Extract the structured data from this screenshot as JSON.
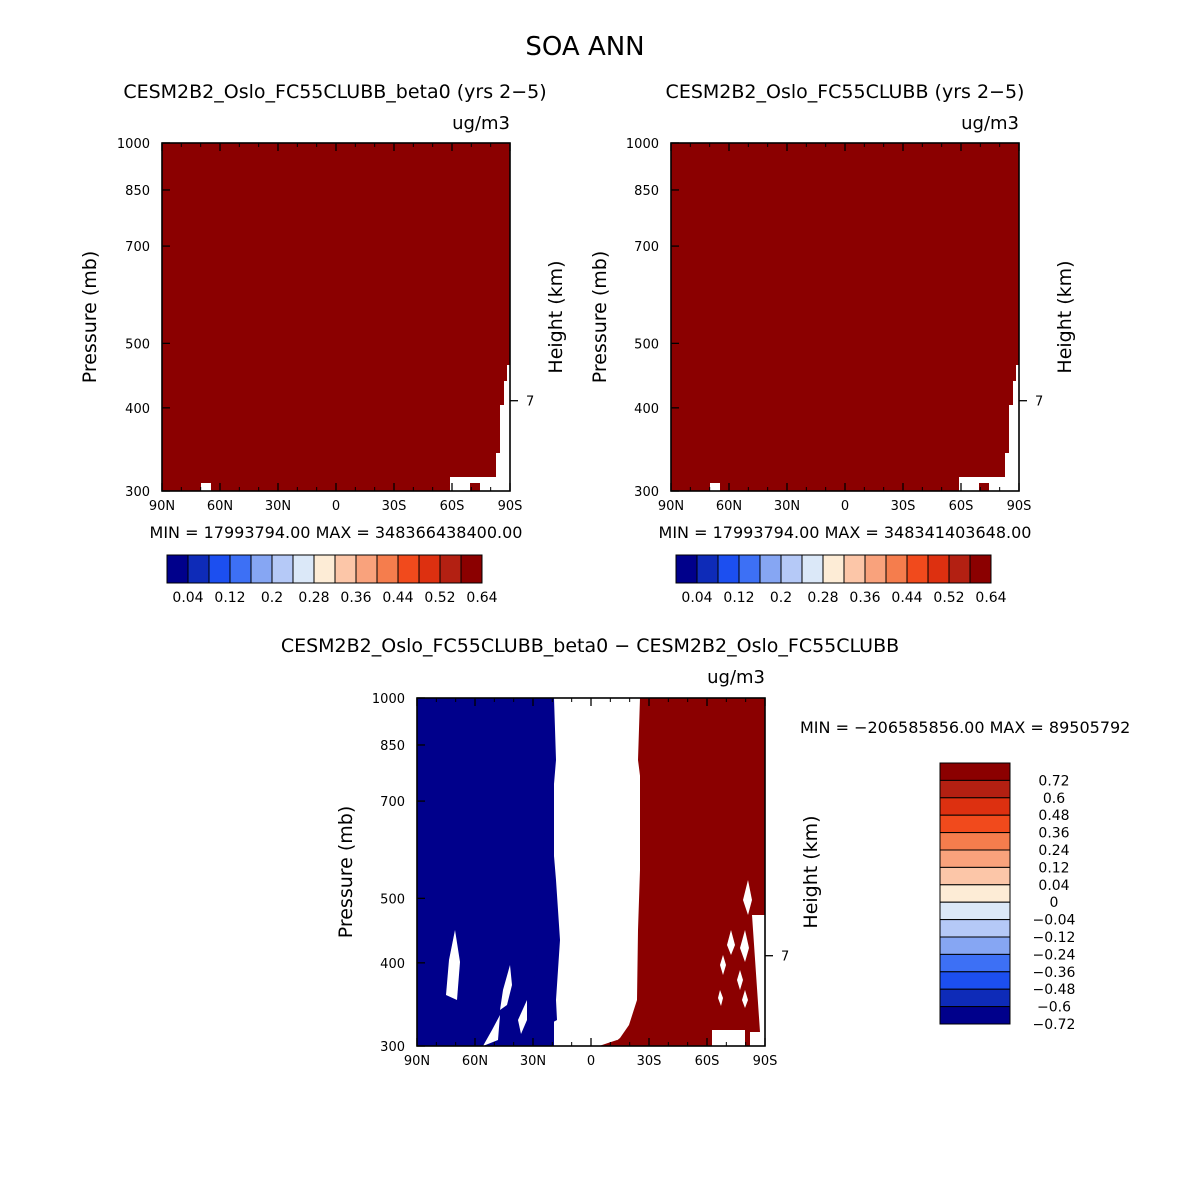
{
  "page_title": "SOA ANN",
  "chart_data": [
    {
      "type": "heatmap",
      "title": "CESM2B2_Oslo_FC55CLUBB_beta0 (yrs 2−5)",
      "units": "ug/m3",
      "xlabel": "",
      "ylabel": "Pressure (mb)",
      "ylabel_right": "Height (km)",
      "x_tick_labels": [
        "90N",
        "60N",
        "30N",
        "0",
        "30S",
        "60S",
        "90S"
      ],
      "y_ticks": [
        300,
        400,
        500,
        700,
        850,
        1000
      ],
      "ylim": [
        1000,
        300
      ],
      "right_ticks": [
        {
          "km": 7,
          "label": "7"
        }
      ],
      "stats": "MIN = 17993794.00   MAX = 348366438400.00",
      "field_color": "#8b0000",
      "colorbar_labels": [
        "0.04",
        "0.12",
        "0.2",
        "0.28",
        "0.36",
        "0.44",
        "0.52",
        "0.64"
      ]
    },
    {
      "type": "heatmap",
      "title": "CESM2B2_Oslo_FC55CLUBB (yrs 2−5)",
      "units": "ug/m3",
      "xlabel": "",
      "ylabel": "Pressure (mb)",
      "ylabel_right": "Height (km)",
      "x_tick_labels": [
        "90N",
        "60N",
        "30N",
        "0",
        "30S",
        "60S",
        "90S"
      ],
      "y_ticks": [
        300,
        400,
        500,
        700,
        850,
        1000
      ],
      "ylim": [
        1000,
        300
      ],
      "right_ticks": [
        {
          "km": 7,
          "label": "7"
        }
      ],
      "stats": "MIN = 17993794.00   MAX = 348341403648.00",
      "field_color": "#8b0000",
      "colorbar_labels": [
        "0.04",
        "0.12",
        "0.2",
        "0.28",
        "0.36",
        "0.44",
        "0.52",
        "0.64"
      ]
    },
    {
      "type": "heatmap",
      "title": "CESM2B2_Oslo_FC55CLUBB_beta0 − CESM2B2_Oslo_FC55CLUBB",
      "units": "ug/m3",
      "xlabel": "",
      "ylabel": "Pressure (mb)",
      "ylabel_right": "Height (km)",
      "x_tick_labels": [
        "90N",
        "60N",
        "30N",
        "0",
        "30S",
        "60S",
        "90S"
      ],
      "y_ticks": [
        300,
        400,
        500,
        700,
        850,
        1000
      ],
      "ylim": [
        1000,
        300
      ],
      "right_ticks": [
        {
          "km": 7,
          "label": "7"
        }
      ],
      "stats": "MIN = −206585856.00   MAX = 89505792",
      "regions": [
        {
          "name": "negative",
          "lat_range": [
            "90N",
            "~17N"
          ],
          "color": "#00008b"
        },
        {
          "name": "near-zero",
          "lat_range": [
            "~17N",
            "~27S"
          ],
          "color": "#ffffff"
        },
        {
          "name": "positive",
          "lat_range": [
            "~27S",
            "90S"
          ],
          "color": "#8b0000"
        }
      ],
      "colorbar_labels": [
        "0.72",
        "0.6",
        "0.48",
        "0.36",
        "0.24",
        "0.12",
        "0.04",
        "0",
        "−0.04",
        "−0.12",
        "−0.24",
        "−0.36",
        "−0.48",
        "−0.6",
        "−0.72"
      ]
    }
  ],
  "colors": {
    "horizontal_bar": [
      "#00008b",
      "#0e2bb8",
      "#1c4ff0",
      "#3d70f5",
      "#86a6f3",
      "#b5c9f7",
      "#dbe8f8",
      "#fdecd6",
      "#fcc6a8",
      "#f9a27c",
      "#f57d4d",
      "#f14a1c",
      "#dd3010",
      "#b32012",
      "#8b0000"
    ],
    "vertical_bar": [
      "#8b0000",
      "#b32012",
      "#dd3010",
      "#f14a1c",
      "#f57d4d",
      "#f9a27c",
      "#fcc6a8",
      "#fdecd6",
      "#dbe8f8",
      "#b5c9f7",
      "#86a6f3",
      "#3d70f5",
      "#1c4ff0",
      "#0e2bb8",
      "#00008b"
    ],
    "neg": "#00008b",
    "pos": "#8b0000"
  }
}
